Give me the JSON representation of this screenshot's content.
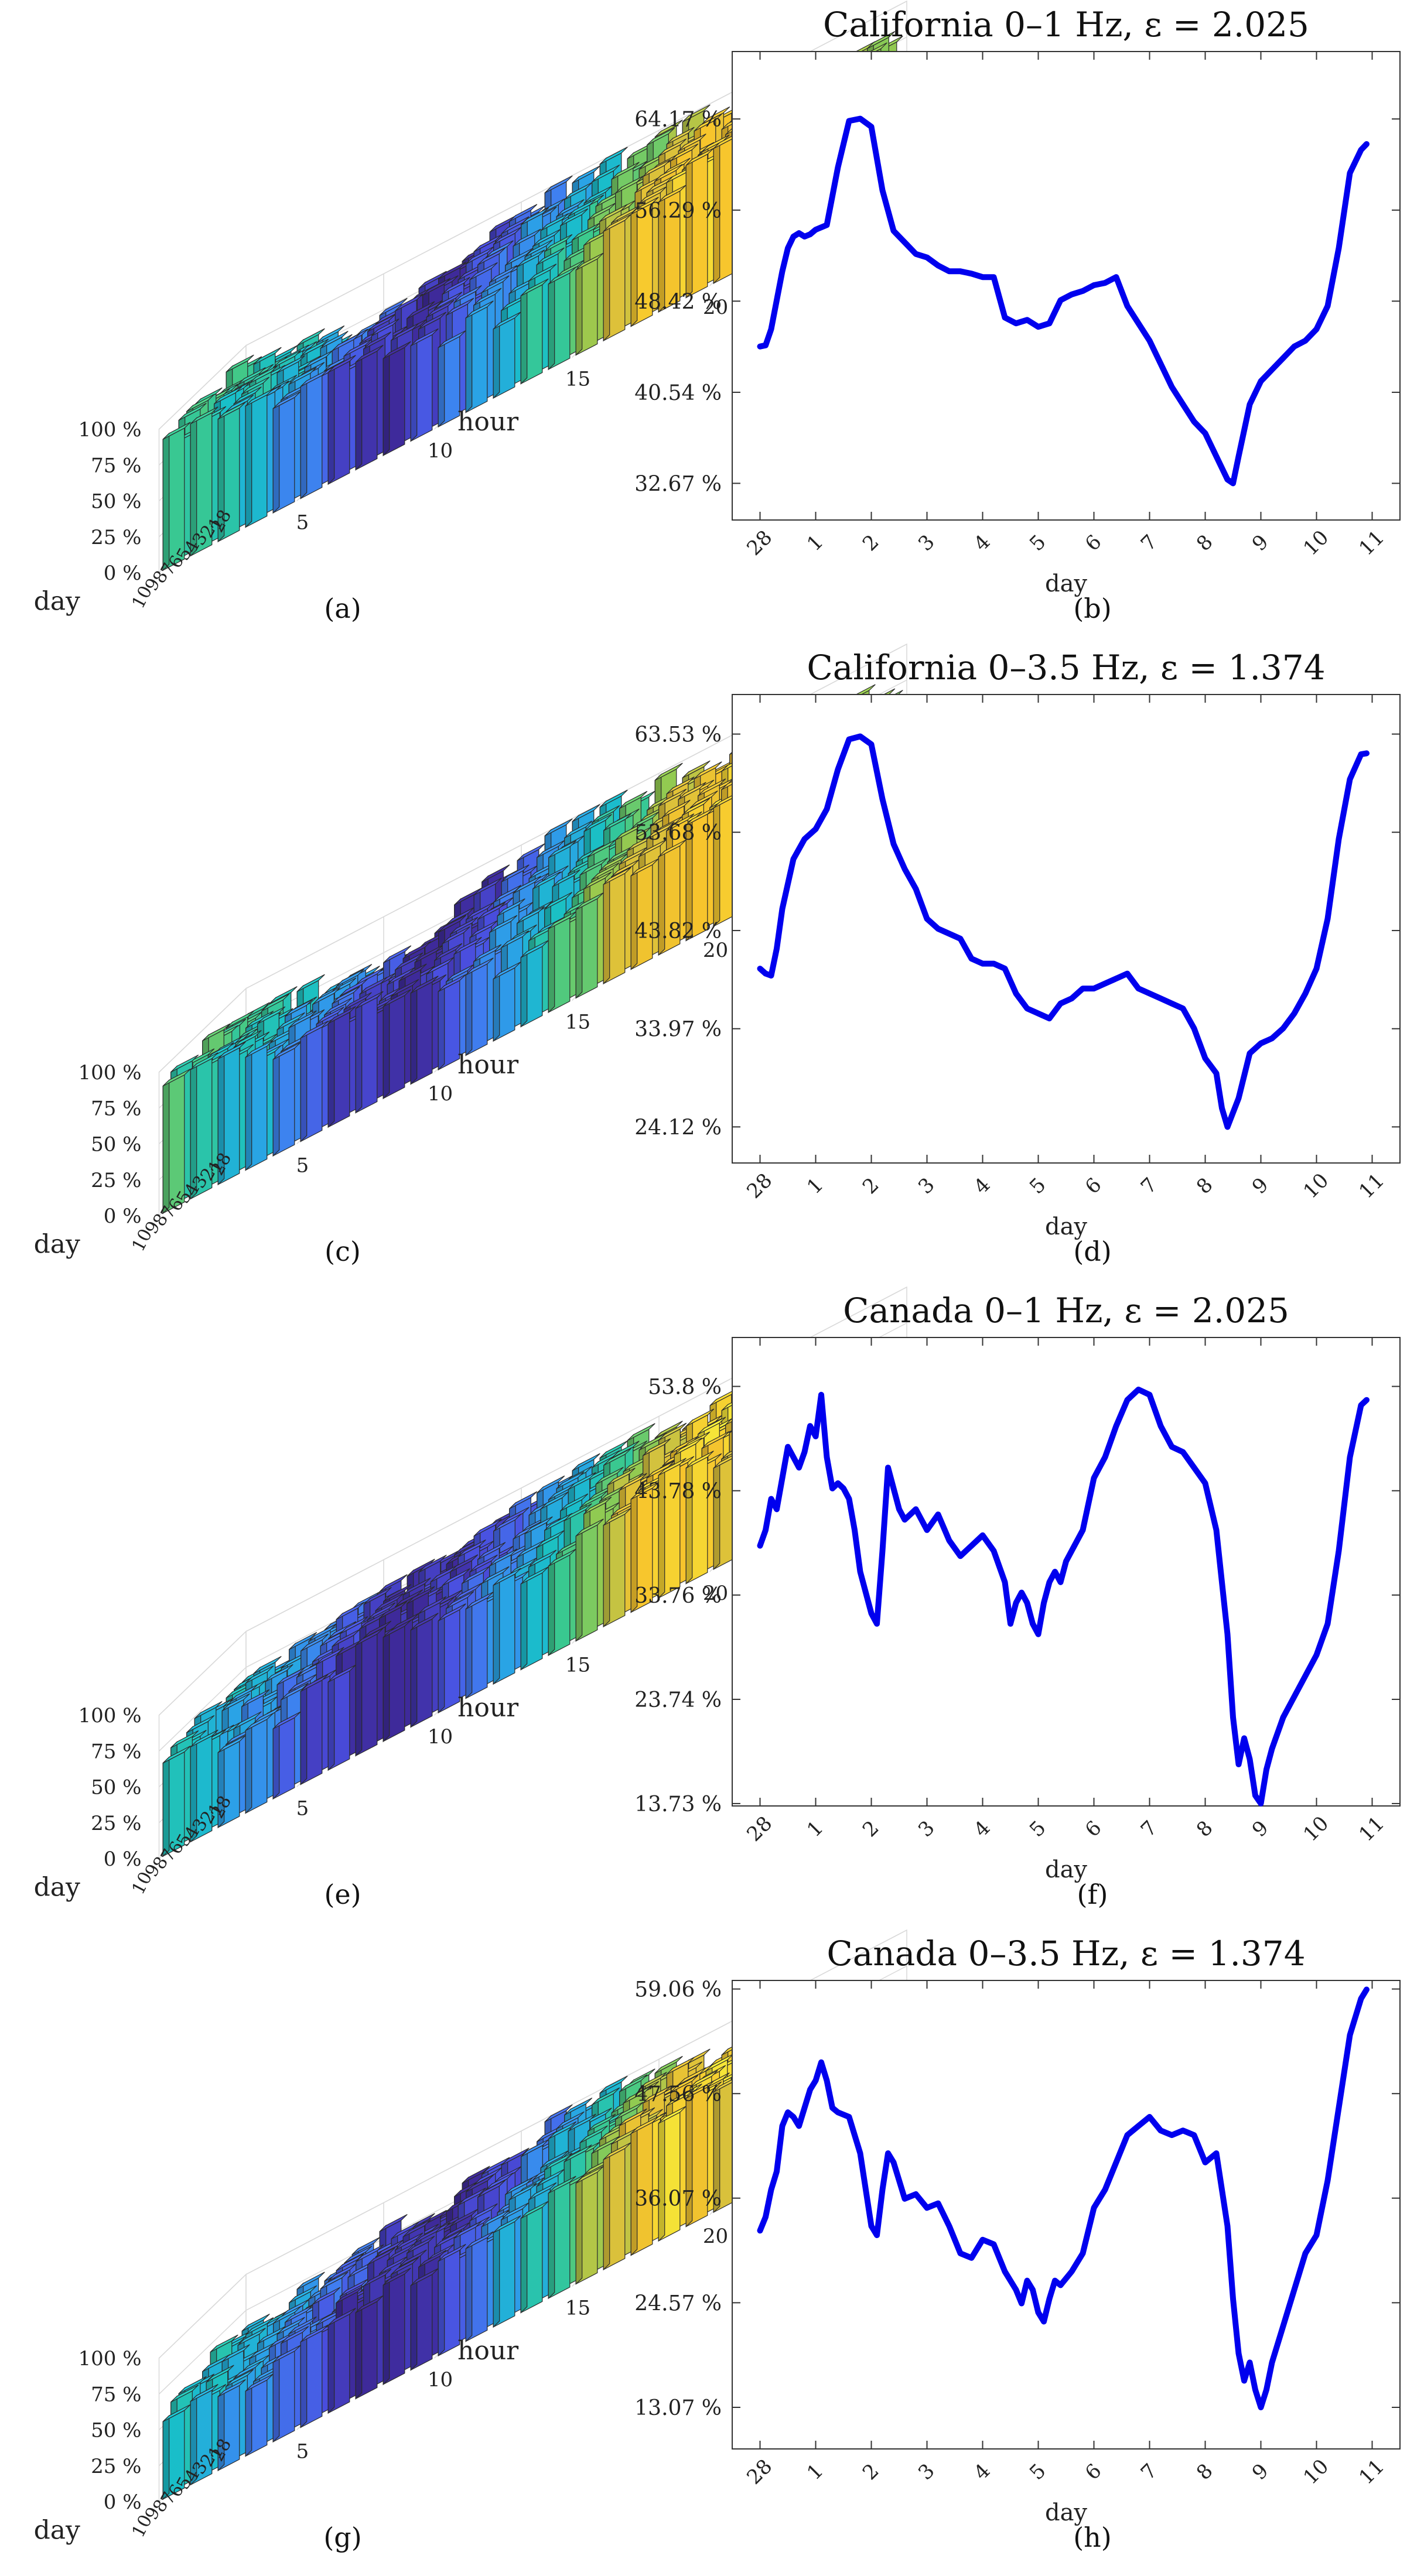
{
  "figure": {
    "panel_captions": [
      "(a)",
      "(b)",
      "(c)",
      "(d)",
      "(e)",
      "(f)",
      "(g)",
      "(h)"
    ]
  },
  "colors": {
    "line": "#0000ee",
    "axis": "#333333",
    "grid": "#d9d9d9",
    "bar_edge": "#2a2a2a",
    "colormap": [
      "#3e2a9a",
      "#4a4fe0",
      "#3f7ff0",
      "#2aa3e6",
      "#19bfc8",
      "#3cc98c",
      "#8fca52",
      "#d8c13c",
      "#f7c42c",
      "#f5e638"
    ]
  },
  "chart_data": [
    {
      "id": "a",
      "type": "bar3d",
      "caption": "(a)",
      "xlabel": "hour",
      "ylabel": "day",
      "z_ticks": [
        "0 %",
        "25 %",
        "50 %",
        "75 %",
        "100 %"
      ],
      "hour_ticks": [
        "5",
        "10",
        "15",
        "20"
      ],
      "day_ticks": [
        "28",
        "1",
        "2",
        "3",
        "4",
        "5",
        "6",
        "7",
        "8",
        "9",
        "10"
      ],
      "front_profile": [
        0.9,
        0.86,
        0.85,
        0.82,
        0.8,
        0.79,
        0.78,
        0.76,
        0.72,
        0.66,
        0.62,
        0.58,
        0.55,
        0.56,
        0.6,
        0.64,
        0.7,
        0.76,
        0.8,
        0.85,
        0.88,
        0.9,
        0.92,
        0.94
      ],
      "back_profile": [
        0.88,
        0.84,
        0.8,
        0.76,
        0.72,
        0.7,
        0.72,
        0.78,
        0.84,
        0.9,
        0.95,
        0.98,
        1.0,
        0.99,
        0.96,
        0.94,
        0.92,
        0.9,
        0.88,
        0.86,
        0.84,
        0.82,
        0.8,
        0.78
      ],
      "color_profile": [
        0.55,
        0.5,
        0.45,
        0.4,
        0.3,
        0.22,
        0.12,
        0.05,
        0.02,
        0.08,
        0.18,
        0.28,
        0.38,
        0.48,
        0.58,
        0.68,
        0.78,
        0.86,
        0.92,
        0.95,
        0.9,
        0.82,
        0.74,
        0.66
      ],
      "seed": 11
    },
    {
      "id": "b",
      "type": "line",
      "caption": "(b)",
      "title": "California 0–1 Hz, ε = 2.025",
      "xlabel": "day",
      "x_ticks": [
        "28",
        "1",
        "2",
        "3",
        "4",
        "5",
        "6",
        "7",
        "8",
        "9",
        "10",
        "11"
      ],
      "y_ticks": [
        "64.17 %",
        "56.29 %",
        "48.42 %",
        "40.54 %",
        "32.67 %"
      ],
      "y_tick_values": [
        64.17,
        56.29,
        48.42,
        40.54,
        32.67
      ],
      "ylim": [
        29.5,
        70.0
      ],
      "x": [
        0.0,
        0.1,
        0.2,
        0.3,
        0.4,
        0.5,
        0.6,
        0.7,
        0.8,
        0.9,
        1.0,
        1.2,
        1.4,
        1.6,
        1.8,
        2.0,
        2.2,
        2.4,
        2.6,
        2.8,
        3.0,
        3.2,
        3.4,
        3.6,
        3.8,
        4.0,
        4.2,
        4.4,
        4.6,
        4.8,
        5.0,
        5.2,
        5.4,
        5.6,
        5.8,
        6.0,
        6.2,
        6.4,
        6.6,
        6.8,
        7.0,
        7.2,
        7.4,
        7.6,
        7.8,
        8.0,
        8.2,
        8.4,
        8.5,
        8.6,
        8.8,
        9.0,
        9.2,
        9.4,
        9.6,
        9.8,
        10.0,
        10.2,
        10.4,
        10.6,
        10.8,
        10.9
      ],
      "y": [
        44.5,
        44.6,
        46.0,
        48.5,
        51.0,
        53.0,
        54.0,
        54.3,
        54.0,
        54.2,
        54.6,
        55.0,
        60.0,
        64.0,
        64.2,
        63.5,
        58.0,
        54.5,
        53.5,
        52.5,
        52.2,
        51.5,
        51.0,
        51.0,
        50.8,
        50.5,
        50.5,
        47.0,
        46.5,
        46.8,
        46.2,
        46.5,
        48.5,
        49.0,
        49.3,
        49.8,
        50.0,
        50.5,
        48.0,
        46.5,
        45.0,
        43.0,
        41.0,
        39.5,
        38.0,
        37.0,
        35.0,
        33.0,
        32.67,
        35.0,
        39.5,
        41.5,
        42.5,
        43.5,
        44.5,
        45.0,
        46.0,
        48.0,
        53.0,
        59.5,
        61.5,
        62.0
      ]
    },
    {
      "id": "c",
      "type": "bar3d",
      "caption": "(c)",
      "xlabel": "hour",
      "ylabel": "day",
      "z_ticks": [
        "0 %",
        "25 %",
        "50 %",
        "75 %",
        "100 %"
      ],
      "hour_ticks": [
        "5",
        "10",
        "15",
        "20"
      ],
      "day_ticks": [
        "28",
        "1",
        "2",
        "3",
        "4",
        "5",
        "6",
        "7",
        "8",
        "9",
        "10"
      ],
      "front_profile": [
        0.88,
        0.84,
        0.8,
        0.76,
        0.72,
        0.7,
        0.68,
        0.66,
        0.64,
        0.6,
        0.56,
        0.52,
        0.5,
        0.52,
        0.56,
        0.62,
        0.68,
        0.72,
        0.76,
        0.8,
        0.84,
        0.86,
        0.88,
        0.86
      ],
      "back_profile": [
        0.86,
        0.82,
        0.78,
        0.74,
        0.72,
        0.7,
        0.72,
        0.76,
        0.82,
        0.88,
        0.94,
        0.98,
        1.0,
        0.98,
        0.96,
        0.93,
        0.9,
        0.88,
        0.85,
        0.82,
        0.8,
        0.78,
        0.76,
        0.74
      ],
      "color_profile": [
        0.55,
        0.48,
        0.42,
        0.36,
        0.28,
        0.18,
        0.1,
        0.04,
        0.02,
        0.06,
        0.16,
        0.26,
        0.36,
        0.46,
        0.56,
        0.66,
        0.76,
        0.84,
        0.9,
        0.94,
        0.9,
        0.82,
        0.72,
        0.64
      ],
      "seed": 23
    },
    {
      "id": "d",
      "type": "line",
      "caption": "(d)",
      "title": "California 0–3.5 Hz, ε = 1.374",
      "xlabel": "day",
      "x_ticks": [
        "28",
        "1",
        "2",
        "3",
        "4",
        "5",
        "6",
        "7",
        "8",
        "9",
        "10",
        "11"
      ],
      "y_ticks": [
        "63.53 %",
        "53.68 %",
        "43.82 %",
        "33.97 %",
        "24.12 %"
      ],
      "y_tick_values": [
        63.53,
        53.68,
        43.82,
        33.97,
        24.12
      ],
      "ylim": [
        20.5,
        67.5
      ],
      "x": [
        0.0,
        0.1,
        0.2,
        0.3,
        0.4,
        0.6,
        0.8,
        1.0,
        1.2,
        1.4,
        1.6,
        1.8,
        2.0,
        2.2,
        2.4,
        2.6,
        2.8,
        3.0,
        3.2,
        3.4,
        3.6,
        3.8,
        4.0,
        4.2,
        4.4,
        4.6,
        4.8,
        5.0,
        5.2,
        5.4,
        5.6,
        5.8,
        6.0,
        6.2,
        6.4,
        6.6,
        6.8,
        7.0,
        7.2,
        7.4,
        7.6,
        7.8,
        8.0,
        8.2,
        8.3,
        8.4,
        8.6,
        8.8,
        9.0,
        9.2,
        9.4,
        9.6,
        9.8,
        10.0,
        10.2,
        10.4,
        10.6,
        10.8,
        10.9
      ],
      "y": [
        40.0,
        39.5,
        39.3,
        42.0,
        46.0,
        51.0,
        53.0,
        54.0,
        56.0,
        60.0,
        63.0,
        63.3,
        62.5,
        57.0,
        52.5,
        50.0,
        48.0,
        45.0,
        44.0,
        43.5,
        43.0,
        41.0,
        40.5,
        40.5,
        40.0,
        37.5,
        36.0,
        35.5,
        35.0,
        36.5,
        37.0,
        38.0,
        38.0,
        38.5,
        39.0,
        39.5,
        38.0,
        37.5,
        37.0,
        36.5,
        36.0,
        34.0,
        31.0,
        29.5,
        26.0,
        24.12,
        27.0,
        31.5,
        32.5,
        33.0,
        34.0,
        35.5,
        37.5,
        40.0,
        45.0,
        53.0,
        59.0,
        61.5,
        61.6
      ]
    },
    {
      "id": "e",
      "type": "bar3d",
      "caption": "(e)",
      "xlabel": "hour",
      "ylabel": "day",
      "z_ticks": [
        "0 %",
        "25 %",
        "50 %",
        "75 %",
        "100 %"
      ],
      "hour_ticks": [
        "5",
        "10",
        "15",
        "20"
      ],
      "day_ticks": [
        "28",
        "1",
        "2",
        "3",
        "4",
        "5",
        "6",
        "7",
        "8",
        "9",
        "10"
      ],
      "front_profile": [
        0.65,
        0.6,
        0.55,
        0.52,
        0.56,
        0.62,
        0.68,
        0.72,
        0.7,
        0.66,
        0.62,
        0.6,
        0.62,
        0.66,
        0.7,
        0.74,
        0.78,
        0.8,
        0.82,
        0.8,
        0.78,
        0.72,
        0.6,
        0.4
      ],
      "back_profile": [
        0.72,
        0.7,
        0.74,
        0.78,
        0.82,
        0.8,
        0.78,
        0.8,
        0.84,
        0.88,
        0.92,
        0.95,
        0.98,
        1.0,
        0.98,
        0.95,
        0.92,
        0.88,
        0.84,
        0.8,
        0.76,
        0.72,
        0.68,
        0.6
      ],
      "color_profile": [
        0.42,
        0.38,
        0.3,
        0.24,
        0.18,
        0.12,
        0.06,
        0.02,
        0.02,
        0.06,
        0.14,
        0.24,
        0.34,
        0.44,
        0.56,
        0.68,
        0.8,
        0.9,
        0.94,
        0.92,
        0.84,
        0.7,
        0.56,
        0.48
      ],
      "seed": 37
    },
    {
      "id": "f",
      "type": "line",
      "caption": "(f)",
      "title": "Canada 0–1 Hz, ε = 2.025",
      "xlabel": "day",
      "x_ticks": [
        "28",
        "1",
        "2",
        "3",
        "4",
        "5",
        "6",
        "7",
        "8",
        "9",
        "10",
        "11"
      ],
      "y_ticks": [
        "53.8 %",
        "43.78 %",
        "33.76 %",
        "23.74 %",
        "13.73 %"
      ],
      "y_tick_values": [
        53.8,
        43.78,
        33.76,
        23.74,
        13.73
      ],
      "ylim": [
        13.5,
        58.5
      ],
      "x": [
        0.0,
        0.1,
        0.2,
        0.3,
        0.4,
        0.5,
        0.6,
        0.7,
        0.8,
        0.9,
        1.0,
        1.1,
        1.2,
        1.3,
        1.4,
        1.5,
        1.6,
        1.7,
        1.8,
        1.9,
        2.0,
        2.1,
        2.2,
        2.3,
        2.4,
        2.5,
        2.6,
        2.8,
        3.0,
        3.2,
        3.4,
        3.6,
        3.8,
        4.0,
        4.2,
        4.4,
        4.5,
        4.6,
        4.7,
        4.8,
        4.9,
        5.0,
        5.1,
        5.2,
        5.3,
        5.4,
        5.5,
        5.6,
        5.8,
        6.0,
        6.2,
        6.4,
        6.6,
        6.8,
        7.0,
        7.2,
        7.4,
        7.6,
        7.8,
        8.0,
        8.2,
        8.4,
        8.5,
        8.6,
        8.7,
        8.8,
        8.9,
        9.0,
        9.1,
        9.2,
        9.4,
        9.6,
        9.8,
        10.0,
        10.2,
        10.4,
        10.6,
        10.8,
        10.9
      ],
      "y": [
        38.5,
        40.0,
        43.0,
        42.0,
        45.0,
        48.0,
        47.0,
        46.0,
        47.5,
        50.0,
        49.0,
        53.0,
        47.0,
        44.0,
        44.5,
        44.0,
        43.0,
        40.0,
        36.0,
        34.0,
        32.0,
        31.0,
        38.0,
        46.0,
        44.0,
        42.0,
        41.0,
        42.0,
        40.0,
        41.5,
        39.0,
        37.5,
        38.5,
        39.5,
        38.0,
        35.0,
        31.0,
        33.0,
        34.0,
        33.0,
        31.0,
        30.0,
        33.0,
        35.0,
        36.0,
        35.0,
        37.0,
        38.0,
        40.0,
        45.0,
        47.0,
        50.0,
        52.5,
        53.5,
        53.0,
        50.0,
        48.0,
        47.5,
        46.0,
        44.5,
        40.0,
        30.0,
        22.0,
        17.5,
        20.0,
        18.0,
        14.5,
        13.73,
        17.0,
        19.0,
        22.0,
        24.0,
        26.0,
        28.0,
        31.0,
        38.0,
        47.0,
        52.0,
        52.5
      ]
    },
    {
      "id": "g",
      "type": "bar3d",
      "caption": "(g)",
      "xlabel": "hour",
      "ylabel": "day",
      "z_ticks": [
        "0 %",
        "25 %",
        "50 %",
        "75 %",
        "100 %"
      ],
      "hour_ticks": [
        "5",
        "10",
        "15",
        "20"
      ],
      "day_ticks": [
        "28",
        "1",
        "2",
        "3",
        "4",
        "5",
        "6",
        "7",
        "8",
        "9",
        "10"
      ],
      "front_profile": [
        0.55,
        0.52,
        0.5,
        0.5,
        0.54,
        0.58,
        0.62,
        0.66,
        0.66,
        0.64,
        0.62,
        0.62,
        0.64,
        0.68,
        0.72,
        0.76,
        0.8,
        0.82,
        0.84,
        0.82,
        0.8,
        0.74,
        0.64,
        0.5
      ],
      "back_profile": [
        0.68,
        0.66,
        0.7,
        0.74,
        0.78,
        0.78,
        0.76,
        0.78,
        0.82,
        0.86,
        0.9,
        0.94,
        0.97,
        1.0,
        0.97,
        0.94,
        0.9,
        0.86,
        0.82,
        0.78,
        0.74,
        0.7,
        0.66,
        0.58
      ],
      "color_profile": [
        0.44,
        0.4,
        0.32,
        0.26,
        0.2,
        0.12,
        0.06,
        0.02,
        0.02,
        0.06,
        0.14,
        0.24,
        0.34,
        0.44,
        0.56,
        0.68,
        0.8,
        0.9,
        0.94,
        0.92,
        0.84,
        0.7,
        0.56,
        0.48
      ],
      "seed": 53
    },
    {
      "id": "h",
      "type": "line",
      "caption": "(h)",
      "title": "Canada 0–3.5 Hz, ε = 1.374",
      "xlabel": "day",
      "x_ticks": [
        "28",
        "1",
        "2",
        "3",
        "4",
        "5",
        "6",
        "7",
        "8",
        "9",
        "10",
        "11"
      ],
      "y_ticks": [
        "59.06 %",
        "47.56 %",
        "36.07 %",
        "24.57 %",
        "13.07 %"
      ],
      "y_tick_values": [
        59.06,
        47.56,
        36.07,
        24.57,
        13.07
      ],
      "ylim": [
        8.5,
        60.0
      ],
      "x": [
        0.0,
        0.1,
        0.2,
        0.3,
        0.4,
        0.5,
        0.6,
        0.7,
        0.8,
        0.9,
        1.0,
        1.1,
        1.2,
        1.3,
        1.4,
        1.6,
        1.8,
        1.9,
        2.0,
        2.1,
        2.2,
        2.3,
        2.4,
        2.5,
        2.6,
        2.8,
        3.0,
        3.2,
        3.4,
        3.6,
        3.8,
        4.0,
        4.2,
        4.4,
        4.6,
        4.7,
        4.8,
        4.9,
        5.0,
        5.1,
        5.2,
        5.3,
        5.4,
        5.6,
        5.8,
        6.0,
        6.2,
        6.4,
        6.6,
        6.8,
        7.0,
        7.2,
        7.4,
        7.6,
        7.8,
        8.0,
        8.2,
        8.4,
        8.5,
        8.6,
        8.7,
        8.8,
        8.9,
        9.0,
        9.1,
        9.2,
        9.4,
        9.6,
        9.8,
        10.0,
        10.2,
        10.4,
        10.6,
        10.8,
        10.9
      ],
      "y": [
        32.5,
        34.0,
        37.0,
        39.0,
        44.0,
        45.5,
        45.0,
        44.0,
        46.0,
        48.0,
        49.0,
        51.0,
        49.0,
        46.0,
        45.5,
        45.0,
        41.0,
        37.0,
        33.0,
        32.0,
        37.0,
        41.0,
        40.0,
        38.0,
        36.0,
        36.5,
        35.0,
        35.5,
        33.0,
        30.0,
        29.5,
        31.5,
        31.0,
        28.0,
        26.0,
        24.5,
        27.0,
        26.0,
        23.5,
        22.5,
        25.0,
        27.0,
        26.5,
        28.0,
        30.0,
        35.0,
        37.0,
        40.0,
        43.0,
        44.0,
        45.0,
        43.5,
        43.0,
        43.5,
        43.0,
        40.0,
        41.0,
        33.0,
        25.0,
        19.0,
        16.0,
        18.0,
        15.0,
        13.07,
        15.0,
        18.0,
        22.0,
        26.0,
        30.0,
        32.0,
        38.0,
        46.0,
        54.0,
        58.0,
        59.0
      ]
    }
  ]
}
